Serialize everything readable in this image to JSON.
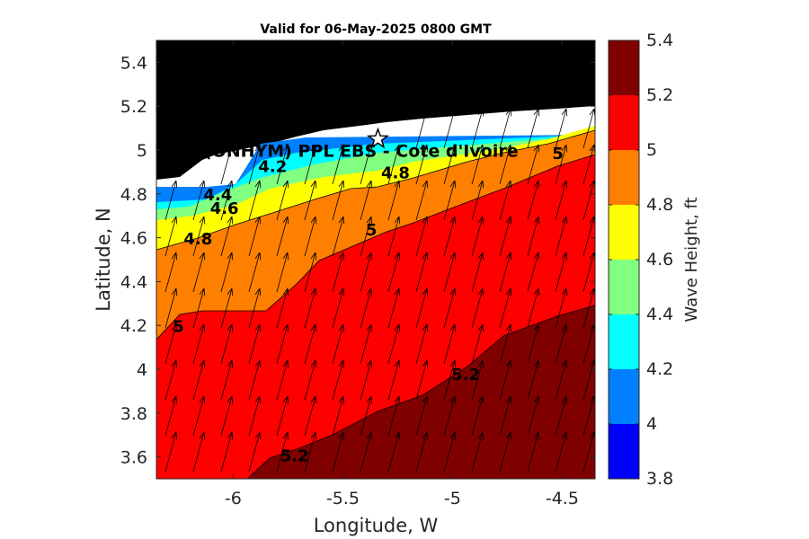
{
  "chart_data": {
    "type": "contour",
    "title": "Valid for 06-May-2025 0800 GMT",
    "xlabel": "Longitude, W",
    "ylabel": "Latitude, N",
    "xlim": [
      -6.35,
      -4.35
    ],
    "ylim": [
      3.5,
      5.5
    ],
    "xticks": [
      -6,
      -5.5,
      -5,
      -4.5
    ],
    "xtick_labels": [
      "-6",
      "-5.5",
      "-5",
      "-4.5"
    ],
    "yticks": [
      3.6,
      3.8,
      4,
      4.2,
      4.4,
      4.6,
      4.8,
      5,
      5.2,
      5.4
    ],
    "ytick_labels": [
      "3.6",
      "3.8",
      "4",
      "4.2",
      "4.4",
      "4.6",
      "4.8",
      "5",
      "5.2",
      "5.4"
    ],
    "colorbar": {
      "label": "Wave Height, ft",
      "levels": [
        3.8,
        4.0,
        4.2,
        4.4,
        4.6,
        4.8,
        5.0,
        5.2,
        5.4
      ],
      "tick_labels": [
        "3.8",
        "4",
        "4.2",
        "4.4",
        "4.6",
        "4.8",
        "5",
        "5.2",
        "5.4"
      ],
      "colors": [
        "#0000ff",
        "#0080ff",
        "#00ffff",
        "#80ff80",
        "#ffff00",
        "#ff8000",
        "#ff0000",
        "#800000"
      ]
    },
    "site": {
      "label": "(ONHYM) PPL EBS - Cote d'Ivoire",
      "lon": -5.34,
      "lat": 5.05
    },
    "contour_labels": [
      {
        "text": "4.2",
        "lon": -5.82,
        "lat": 4.9
      },
      {
        "text": "4.4",
        "lon": -6.07,
        "lat": 4.77
      },
      {
        "text": "4.6",
        "lon": -6.04,
        "lat": 4.71
      },
      {
        "text": "4.8",
        "lon": -6.16,
        "lat": 4.57
      },
      {
        "text": "4.8",
        "lon": -5.26,
        "lat": 4.87
      },
      {
        "text": "5",
        "lon": -5.37,
        "lat": 4.61
      },
      {
        "text": "5",
        "lon": -4.52,
        "lat": 4.96
      },
      {
        "text": "5",
        "lon": -6.25,
        "lat": 4.17
      },
      {
        "text": "5.2",
        "lon": -4.94,
        "lat": 3.95
      },
      {
        "text": "5.2",
        "lon": -5.72,
        "lat": 3.58
      }
    ],
    "background": {
      "land_color": "#000000",
      "coast_strip_color": "#ffffff"
    },
    "wave_direction": "arrows point north-northeast"
  }
}
